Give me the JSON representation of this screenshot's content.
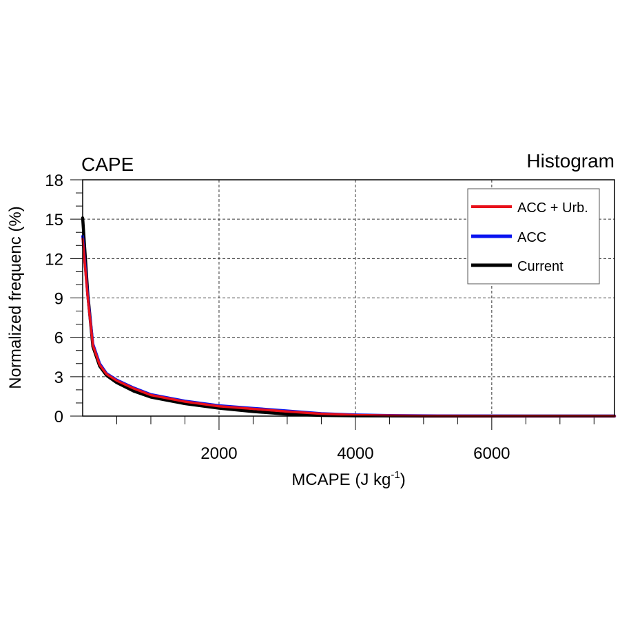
{
  "chart_data": {
    "type": "line",
    "title_left": "CAPE",
    "title_right": "Histogram",
    "ylabel": "Normalized frequenc (%)",
    "xlabel": "MCAPE (J kg",
    "xlabel_sup": "-1",
    "xlabel_close": ")",
    "xlim": [
      0,
      7800
    ],
    "ylim": [
      0,
      18
    ],
    "xticks": [
      2000,
      4000,
      6000
    ],
    "xtick_labels": [
      "2000",
      "4000",
      "6000"
    ],
    "yticks": [
      0,
      3,
      6,
      9,
      12,
      15,
      18
    ],
    "ytick_labels": [
      "0",
      "3",
      "6",
      "9",
      "12",
      "15",
      "18"
    ],
    "grid": true,
    "legend_position": "top-right",
    "x": [
      0,
      75,
      150,
      250,
      350,
      500,
      750,
      1000,
      1500,
      2000,
      2500,
      3000,
      3500,
      4000,
      4500,
      5000,
      6000,
      7000,
      7800
    ],
    "series": [
      {
        "name": "ACC + Urb.",
        "color": "#e8101a",
        "values": [
          13.5,
          9.0,
          5.4,
          3.9,
          3.2,
          2.7,
          2.1,
          1.6,
          1.1,
          0.75,
          0.55,
          0.35,
          0.18,
          0.08,
          0.04,
          0.02,
          0.01,
          0.01,
          0.01
        ]
      },
      {
        "name": "ACC",
        "color": "#0a14f0",
        "values": [
          13.7,
          9.1,
          5.5,
          4.0,
          3.25,
          2.75,
          2.15,
          1.65,
          1.15,
          0.8,
          0.6,
          0.4,
          0.2,
          0.1,
          0.05,
          0.03,
          0.02,
          0.01,
          0.01
        ]
      },
      {
        "name": "Current",
        "color": "#000000",
        "values": [
          15.1,
          9.3,
          5.3,
          3.8,
          3.1,
          2.55,
          1.9,
          1.45,
          0.95,
          0.6,
          0.35,
          0.15,
          0.05,
          0.02,
          0.01,
          0.0,
          0.0,
          0.0,
          0.0
        ]
      }
    ]
  }
}
